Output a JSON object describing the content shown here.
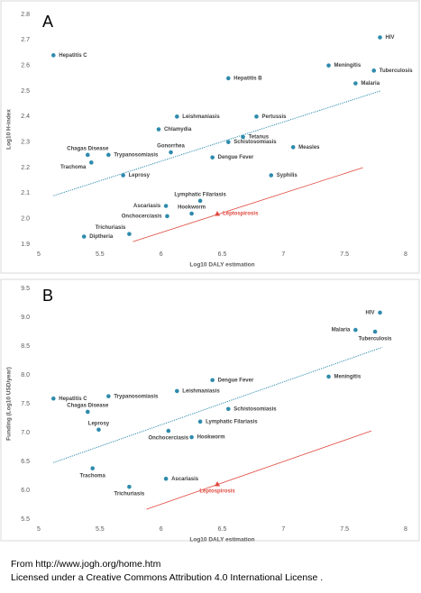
{
  "chart_data": [
    {
      "type": "scatter",
      "panel": "A",
      "x_label": "Log10 DALY estimation",
      "y_label": "Log10 H-index",
      "xlim": [
        5,
        8
      ],
      "ylim": [
        1.9,
        2.8
      ],
      "xticks": [
        5,
        5.5,
        6,
        6.5,
        7,
        7.5,
        8
      ],
      "yticks": [
        1.9,
        {
          "value": 2,
          "label": "2.0"
        },
        2.1,
        2.2,
        2.3,
        2.4,
        2.5,
        2.6,
        2.7,
        2.8
      ],
      "points": {
        "color": "#2e8bac",
        "labels": [
          "HIV",
          "Meningitis",
          "Tuberculosis",
          "Malaria",
          "Hepatitis C",
          "Hepatitis B",
          "Leishmaniasis",
          "Pertussis",
          "Chlamydia",
          "Tetanus",
          "Schistosomiasis",
          "Measles",
          "Gonorrhea",
          "Dengue Fever",
          "Chagas Disease",
          "Trypanosomiasis",
          "Trachoma",
          "Leprosy",
          "Syphilis",
          "Lymphatic Filariasis",
          "Ascariasis",
          "Hookworm",
          "Onchocerciasis",
          "Trichuriasis",
          "Diptheria"
        ],
        "x": [
          7.79,
          7.37,
          7.74,
          7.59,
          5.12,
          6.55,
          6.13,
          6.78,
          5.98,
          6.67,
          6.55,
          7.08,
          6.08,
          6.42,
          5.4,
          5.57,
          5.43,
          5.69,
          6.9,
          6.32,
          6.04,
          6.25,
          6.05,
          5.74,
          5.37
        ],
        "y": [
          2.71,
          2.6,
          2.58,
          2.53,
          2.64,
          2.55,
          2.4,
          2.4,
          2.35,
          2.32,
          2.3,
          2.28,
          2.26,
          2.24,
          2.25,
          2.25,
          2.22,
          2.17,
          2.17,
          2.07,
          2.05,
          2.02,
          2.01,
          1.94,
          1.93
        ]
      },
      "highlight": {
        "label": "Leptospirosis",
        "x": 6.46,
        "y": 2.02,
        "color": "#e0483e",
        "marker": "triangle"
      },
      "trendlines": [
        {
          "x": [
            5.12,
            7.79
          ],
          "y": [
            2.09,
            2.5
          ],
          "color": "#2e8bac",
          "style": "dotted"
        },
        {
          "x": [
            5.77,
            7.65
          ],
          "y": [
            1.91,
            2.2
          ],
          "color": "#e0483e",
          "style": "solid"
        }
      ]
    },
    {
      "type": "scatter",
      "panel": "B",
      "x_label": "Log10 DALY estimation",
      "y_label": "Funding (Log10 USD/year)",
      "xlim": [
        5,
        8
      ],
      "ylim": [
        5.5,
        9.5
      ],
      "xticks": [
        5,
        5.5,
        6,
        6.5,
        7,
        7.5,
        8
      ],
      "yticks": [
        5.5,
        {
          "value": 6,
          "label": "6.0"
        },
        6.5,
        {
          "value": 7,
          "label": "7.0"
        },
        7.5,
        {
          "value": 8,
          "label": "8.0"
        },
        8.5,
        {
          "value": 9,
          "label": "9.0"
        },
        9.5
      ],
      "points": {
        "color": "#2e8bac",
        "labels": [
          "HIV",
          "Malaria",
          "Tuberculosis",
          "Meningitis",
          "Dengue Fever",
          "Hepatitis C",
          "Trypanosomiasis",
          "Leishmaniasis",
          "Chagas Disease",
          "Schistosomiasis",
          "Lymphatic Filariasis",
          "Leprosy",
          "Onchocerciasis",
          "Hookworm",
          "Trachoma",
          "Ascariasis",
          "Trichuriasis"
        ],
        "x": [
          7.79,
          7.59,
          7.75,
          7.37,
          6.42,
          5.12,
          5.57,
          6.13,
          5.4,
          6.55,
          6.32,
          5.49,
          6.06,
          6.25,
          5.44,
          6.04,
          5.74
        ],
        "y": [
          9.08,
          8.78,
          8.75,
          7.97,
          7.91,
          7.59,
          7.63,
          7.72,
          7.36,
          7.41,
          7.19,
          7.05,
          7.03,
          6.92,
          6.38,
          6.2,
          6.06
        ]
      },
      "highlight": {
        "label": "Leptospirosis",
        "x": 6.46,
        "y": 6.11,
        "color": "#e0483e",
        "marker": "triangle"
      },
      "trendlines": [
        {
          "x": [
            5.12,
            7.81
          ],
          "y": [
            6.48,
            8.48
          ],
          "color": "#2e8bac",
          "style": "dotted"
        },
        {
          "x": [
            5.88,
            7.72
          ],
          "y": [
            5.67,
            7.03
          ],
          "color": "#e0483e",
          "style": "solid"
        }
      ]
    }
  ],
  "footer": {
    "source": "From http://www.jogh.org/home.htm",
    "license": "Licensed under a Creative Commons Attribution 4.0 International License ."
  }
}
